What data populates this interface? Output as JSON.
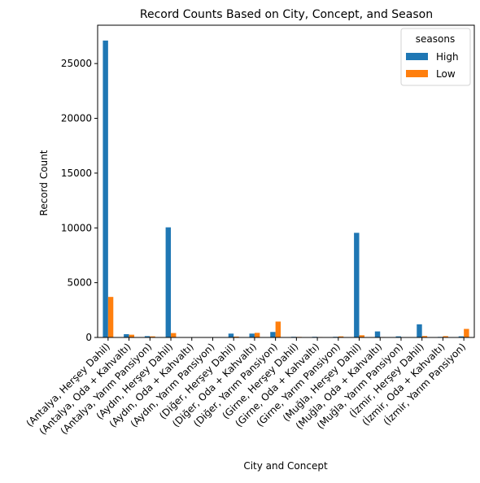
{
  "chart_data": {
    "type": "bar",
    "title": "Record Counts Based on City, Concept, and Season",
    "xlabel": "City and Concept",
    "ylabel": "Record Count",
    "ylim": [
      0,
      28500
    ],
    "yticks": [
      0,
      5000,
      10000,
      15000,
      20000,
      25000
    ],
    "grid": false,
    "legend": {
      "title": "seasons",
      "placement": "top-right"
    },
    "categories": [
      "(Antalya, Herşey Dahil)",
      "(Antalya, Oda + Kahvaltı)",
      "(Antalya, Yarım Pansiyon)",
      "(Aydın, Herşey Dahil)",
      "(Aydın, Oda + Kahvaltı)",
      "(Aydın, Yarım Pansiyon)",
      "(Diğer, Herşey Dahil)",
      "(Diğer, Oda + Kahvaltı)",
      "(Diğer, Yarım Pansiyon)",
      "(Girne, Herşey Dahil)",
      "(Girne, Oda + Kahvaltı)",
      "(Girne, Yarım Pansiyon)",
      "(Muğla, Herşey Dahil)",
      "(Muğla, Oda + Kahvaltı)",
      "(Muğla, Yarım Pansiyon)",
      "(İzmir, Herşey Dahil)",
      "(İzmir, Oda + Kahvaltı)",
      "(İzmir, Yarım Pansiyon)"
    ],
    "series": [
      {
        "name": "High",
        "color": "#1f77b4",
        "values": [
          27100,
          300,
          120,
          10050,
          0,
          0,
          350,
          350,
          500,
          60,
          60,
          60,
          9550,
          550,
          100,
          1200,
          50,
          100
        ]
      },
      {
        "name": "Low",
        "color": "#ff7f0e",
        "values": [
          3700,
          250,
          100,
          400,
          0,
          0,
          80,
          420,
          1450,
          50,
          40,
          100,
          200,
          40,
          20,
          130,
          120,
          780
        ]
      }
    ]
  }
}
